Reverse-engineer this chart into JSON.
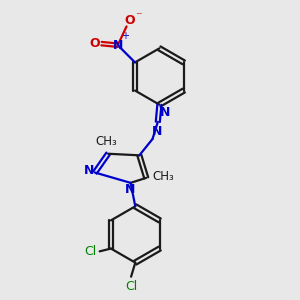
{
  "bg_color": "#e8e8e8",
  "bond_color": "#1a1a1a",
  "n_color": "#0000cc",
  "cl_color": "#008000",
  "o_color": "#cc0000",
  "lw": 1.6,
  "fs": 9.0,
  "xlim": [
    -2.5,
    3.5
  ],
  "ylim": [
    -4.5,
    5.0
  ]
}
